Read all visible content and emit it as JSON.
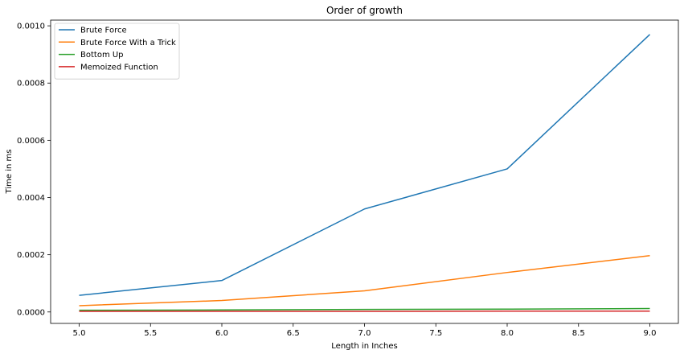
{
  "chart_data": {
    "type": "line",
    "title": "Order of growth",
    "xlabel": "Length in Inches",
    "ylabel": "Time in ms",
    "x": [
      5,
      6,
      7,
      8,
      9
    ],
    "xlim": [
      4.8,
      9.2
    ],
    "ylim": [
      -4e-05,
      0.00102
    ],
    "xticks": [
      5.0,
      5.5,
      6.0,
      6.5,
      7.0,
      7.5,
      8.0,
      8.5,
      9.0
    ],
    "xtick_labels": [
      "5.0",
      "5.5",
      "6.0",
      "6.5",
      "7.0",
      "7.5",
      "8.0",
      "8.5",
      "9.0"
    ],
    "yticks": [
      0,
      0.0002,
      0.0004,
      0.0006,
      0.0008,
      0.001
    ],
    "ytick_labels": [
      "0.0000",
      "0.0002",
      "0.0004",
      "0.0006",
      "0.0008",
      "0.0010"
    ],
    "grid": false,
    "legend_position": "top-left",
    "series": [
      {
        "name": "Brute Force",
        "color": "#1f77b4",
        "values": [
          5.8e-05,
          0.00011,
          0.00036,
          0.0005,
          0.00097
        ]
      },
      {
        "name": "Brute Force With a Trick",
        "color": "#ff7f0e",
        "values": [
          2.2e-05,
          4e-05,
          7.4e-05,
          0.000138,
          0.000197
        ]
      },
      {
        "name": "Bottom Up",
        "color": "#2ca02c",
        "values": [
          6e-06,
          7e-06,
          9e-06,
          1e-05,
          1.2e-05
        ]
      },
      {
        "name": "Memoized Function",
        "color": "#d62728",
        "values": [
          2e-06,
          2e-06,
          2e-06,
          3e-06,
          3e-06
        ]
      }
    ]
  }
}
